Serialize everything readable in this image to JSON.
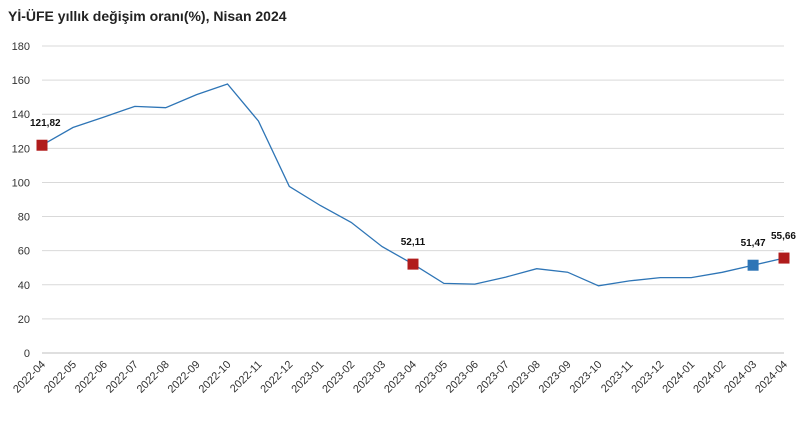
{
  "chart_data": {
    "type": "line",
    "title": "Yİ-ÜFE yıllık değişim oranı(%), Nisan 2024",
    "categories": [
      "2022-04",
      "2022-05",
      "2022-06",
      "2022-07",
      "2022-08",
      "2022-09",
      "2022-10",
      "2022-11",
      "2022-12",
      "2023-01",
      "2023-02",
      "2023-03",
      "2023-04",
      "2023-05",
      "2023-06",
      "2023-07",
      "2023-08",
      "2023-09",
      "2023-10",
      "2023-11",
      "2023-12",
      "2024-01",
      "2024-02",
      "2024-03",
      "2024-04"
    ],
    "series": [
      {
        "values": [
          121.82,
          132.2,
          138.3,
          144.6,
          143.8,
          151.5,
          157.7,
          136.0,
          97.7,
          86.5,
          76.6,
          62.4,
          52.11,
          40.8,
          40.4,
          44.5,
          49.4,
          47.4,
          39.4,
          42.3,
          44.2,
          44.2,
          47.3,
          51.47,
          55.66
        ],
        "color": "#2e75b6"
      }
    ],
    "markers": [
      {
        "index": 0,
        "label": "121,82",
        "color": "#b01c1c"
      },
      {
        "index": 12,
        "label": "52,11",
        "color": "#b01c1c"
      },
      {
        "index": 23,
        "label": "51,47",
        "color": "#2e75b6"
      },
      {
        "index": 24,
        "label": "55,66",
        "color": "#b01c1c"
      }
    ],
    "yticks": [
      "0",
      "20",
      "40",
      "60",
      "80",
      "100",
      "120",
      "140",
      "160",
      "180"
    ],
    "ylim": [
      0,
      180
    ],
    "grid": true,
    "legend": "none"
  }
}
